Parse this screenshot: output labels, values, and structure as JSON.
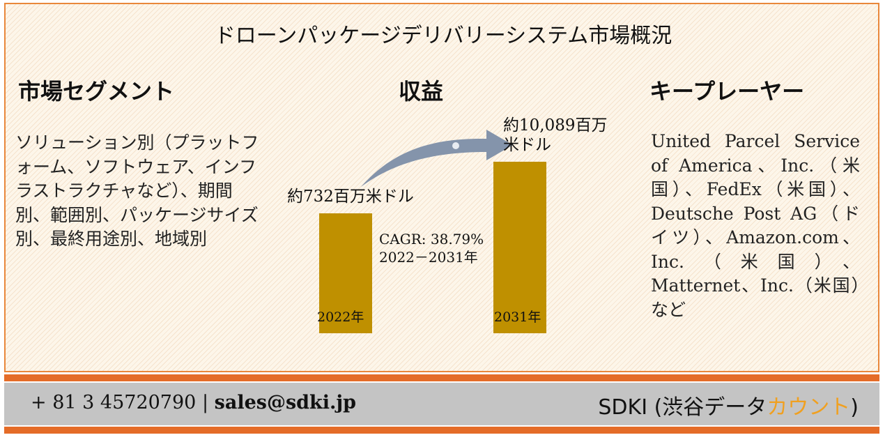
{
  "title": "ドローンパッケージデリバリーシステム市場概況",
  "segments": {
    "heading": "市場セグメント",
    "text": "ソリューション別（プラットフォーム、ソフトウェア、インフラストラクチャなど）、期間別、範囲別、パッケージサイズ別、最終用途別、地域別"
  },
  "revenue": {
    "heading": "収益"
  },
  "players": {
    "heading": "キープレーヤー",
    "text": "United Parcel Service of America、Inc.（米国）、FedEx（米国）、Deutsche Post AG（ドイツ）、Amazon.com、Inc.（米国）、Matternet、Inc.（米国）など"
  },
  "chart_data": {
    "type": "bar",
    "categories": [
      "2022年",
      "2031年"
    ],
    "values": [
      732,
      10089
    ],
    "value_labels": [
      "約732百万米ドル",
      "約10,089百万米ドル"
    ],
    "cagr": "CAGR: 38.79%",
    "cagr_period": "2022－2031年",
    "colors": {
      "bar": "#bf9000",
      "arrow": "#8494ab"
    }
  },
  "footer": {
    "phone": "+ 81 3 45720790",
    "separator": "|",
    "email": "sales@sdki.jp",
    "brand_main": "SDKI (渋谷データ",
    "brand_accent": "カウント",
    "brand_close": ")"
  }
}
